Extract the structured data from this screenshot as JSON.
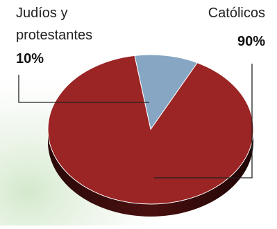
{
  "chart_data": {
    "type": "pie",
    "title": "",
    "slices": [
      {
        "label_lines": [
          "Judíos y",
          "protestantes"
        ],
        "value": 10,
        "value_label": "10%",
        "color": "#86a6c3"
      },
      {
        "label_lines": [
          "Católicos"
        ],
        "value": 90,
        "value_label": "90%",
        "color": "#9b2424"
      }
    ],
    "style": "3d-tilted",
    "legend": "none"
  }
}
